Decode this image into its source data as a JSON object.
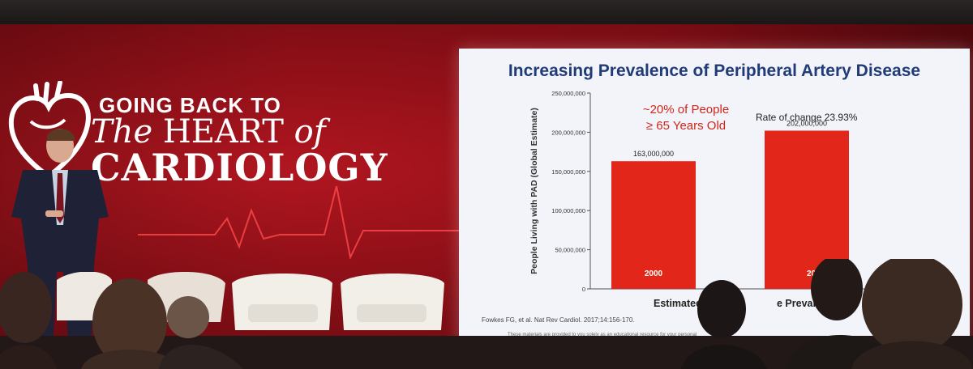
{
  "event_logo": {
    "line1": "GOING BACK TO",
    "line2_italic": "The",
    "line2_main": "HEART",
    "line2_suffix": "of",
    "line3": "CARDIOLOGY"
  },
  "slide": {
    "title": "Increasing Prevalence of Peripheral Artery Disease",
    "annotation_red_line1": "~20% of People",
    "annotation_red_line2": "≥ 65 Years Old",
    "annotation_rate": "Rate of change 23.93%",
    "citation": "Fowkes FG, et al. Nat Rev Cardiol. 2017;14:156-170.",
    "disclaimer": "These materials are provided to you solely as an educational resource for your personal"
  },
  "chart_data": {
    "type": "bar",
    "categories": [
      "2000",
      "201"
    ],
    "values": [
      163000000,
      202000000
    ],
    "data_labels": [
      "163,000,000",
      "202,000,000"
    ],
    "ylabel": "People Living with PAD (Global Estimate)",
    "xlabel": "Estimated",
    "xlabel_tail": "e Prevalence",
    "ylim": [
      0,
      250000000
    ],
    "yticks": [
      0,
      50000000,
      100000000,
      150000000,
      200000000,
      250000000
    ],
    "ytick_labels": [
      "0",
      "50,000,000",
      "100,000,000",
      "150,000,000",
      "200,000,000",
      "250,000,000"
    ],
    "bar_color": "#e3261a",
    "grid": false,
    "legend": "none"
  }
}
